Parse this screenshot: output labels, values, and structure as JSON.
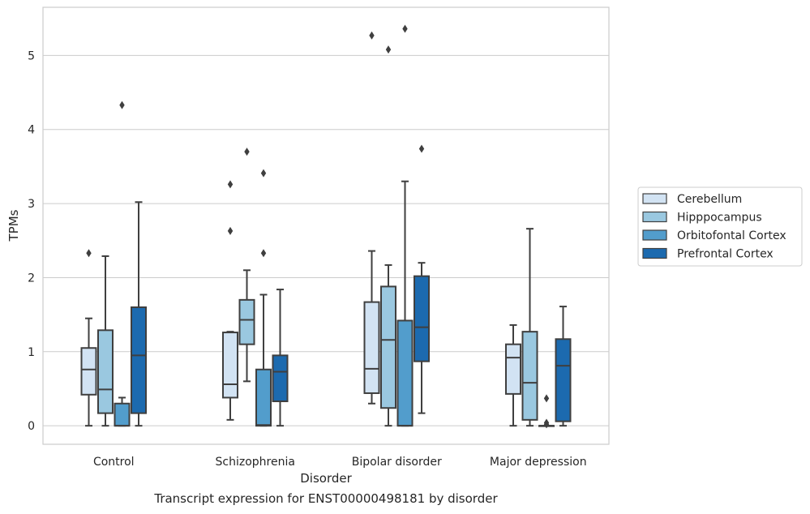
{
  "caption": "Transcript expression for ENST00000498181 by disorder",
  "chart_data": {
    "type": "box",
    "title": "",
    "xlabel": "Disorder",
    "ylabel": "TPMs",
    "categories": [
      "Control",
      "Schizophrenia",
      "Bipolar disorder",
      "Major depression"
    ],
    "ylim": [
      -0.25,
      5.65
    ],
    "yticks": [
      0,
      1,
      2,
      3,
      4,
      5
    ],
    "grid": true,
    "legend_position": "right",
    "series": [
      {
        "name": "Cerebellum",
        "color": "#d2e3f3",
        "boxes": [
          {
            "whislo": 0.0,
            "q1": 0.42,
            "med": 0.76,
            "q3": 1.05,
            "whishi": 1.45,
            "fliers": [
              2.33
            ]
          },
          {
            "whislo": 0.08,
            "q1": 0.38,
            "med": 0.56,
            "q3": 1.26,
            "whishi": 1.27,
            "fliers": [
              2.63,
              3.26
            ]
          },
          {
            "whislo": 0.3,
            "q1": 0.44,
            "med": 0.77,
            "q3": 1.67,
            "whishi": 2.36,
            "fliers": [
              5.27
            ]
          },
          {
            "whislo": 0.0,
            "q1": 0.43,
            "med": 0.92,
            "q3": 1.1,
            "whishi": 1.36,
            "fliers": []
          }
        ]
      },
      {
        "name": "Hipppocampus",
        "color": "#9ac8e0",
        "boxes": [
          {
            "whislo": 0.0,
            "q1": 0.17,
            "med": 0.49,
            "q3": 1.29,
            "whishi": 2.29,
            "fliers": []
          },
          {
            "whislo": 0.6,
            "q1": 1.1,
            "med": 1.43,
            "q3": 1.7,
            "whishi": 2.1,
            "fliers": [
              3.7
            ]
          },
          {
            "whislo": 0.0,
            "q1": 0.24,
            "med": 1.16,
            "q3": 1.88,
            "whishi": 2.17,
            "fliers": [
              5.08
            ]
          },
          {
            "whislo": 0.0,
            "q1": 0.08,
            "med": 0.58,
            "q3": 1.27,
            "whishi": 2.66,
            "fliers": []
          }
        ]
      },
      {
        "name": "Orbitofontal Cortex",
        "color": "#529dcc",
        "boxes": [
          {
            "whislo": 0.0,
            "q1": 0.0,
            "med": 0.0,
            "q3": 0.3,
            "whishi": 0.38,
            "fliers": [
              4.33
            ]
          },
          {
            "whislo": 0.0,
            "q1": 0.0,
            "med": 0.01,
            "q3": 0.76,
            "whishi": 1.77,
            "fliers": [
              2.33,
              3.41
            ]
          },
          {
            "whislo": 0.0,
            "q1": 0.0,
            "med": 0.0,
            "q3": 1.42,
            "whishi": 3.3,
            "fliers": [
              5.36
            ]
          },
          {
            "whislo": 0.0,
            "q1": 0.0,
            "med": 0.0,
            "q3": 0.0,
            "whishi": 0.0,
            "fliers": [
              0.37,
              0.04,
              0.02
            ]
          }
        ]
      },
      {
        "name": "Prefrontal Cortex",
        "color": "#1c6aaf",
        "boxes": [
          {
            "whislo": 0.0,
            "q1": 0.17,
            "med": 0.95,
            "q3": 1.6,
            "whishi": 3.02,
            "fliers": []
          },
          {
            "whislo": 0.0,
            "q1": 0.33,
            "med": 0.73,
            "q3": 0.95,
            "whishi": 1.84,
            "fliers": []
          },
          {
            "whislo": 0.17,
            "q1": 0.87,
            "med": 1.33,
            "q3": 2.02,
            "whishi": 2.2,
            "fliers": [
              3.74
            ]
          },
          {
            "whislo": 0.0,
            "q1": 0.06,
            "med": 0.81,
            "q3": 1.17,
            "whishi": 1.61,
            "fliers": []
          }
        ]
      }
    ]
  }
}
